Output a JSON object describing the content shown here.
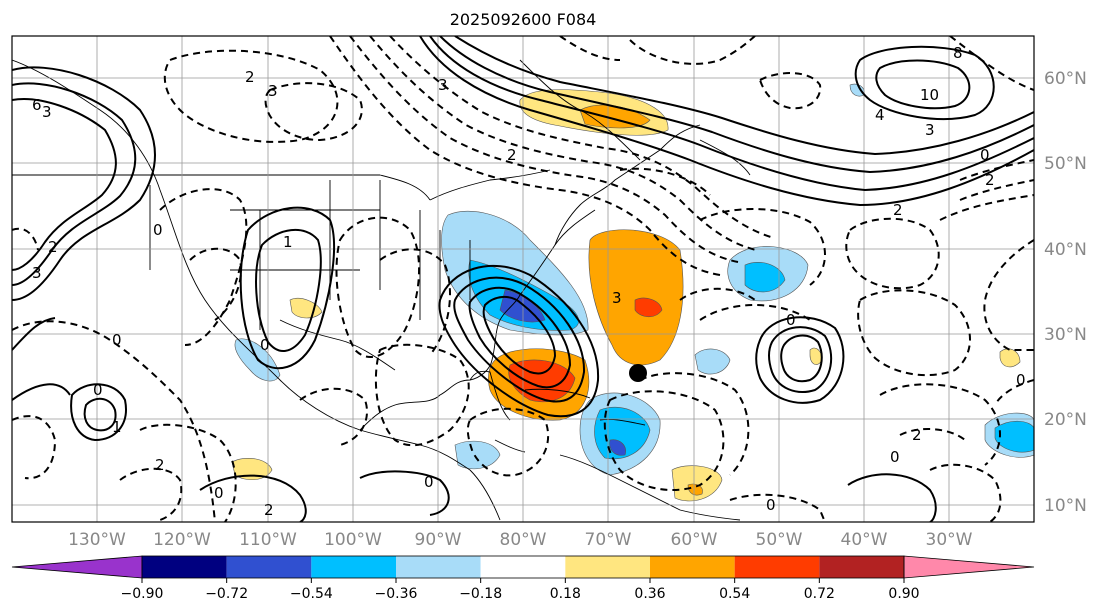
{
  "title": "2025092600 F084",
  "lon_labels": [
    "130°W",
    "120°W",
    "110°W",
    "100°W",
    "90°W",
    "80°W",
    "70°W",
    "60°W",
    "50°W",
    "40°W",
    "30°W"
  ],
  "lat_labels": [
    "60°N",
    "50°N",
    "40°N",
    "30°N",
    "20°N",
    "10°N"
  ],
  "colorbar": {
    "labels": [
      "−0.90",
      "−0.72",
      "−0.54",
      "−0.36",
      "−0.18",
      "0.18",
      "0.36",
      "0.54",
      "0.72",
      "0.90"
    ],
    "colors": [
      "#9933cc",
      "#000080",
      "#3050d0",
      "#00bfff",
      "#a8dcf8",
      "#ffffff",
      "#ffe680",
      "#ffa500",
      "#ff3c00",
      "#b22222",
      "#ff88aa"
    ]
  },
  "contour_labels": [
    "3",
    "6",
    "2",
    "3",
    "0",
    "2",
    "3",
    "1",
    "0",
    "0",
    "1",
    "0",
    "0",
    "2",
    "0",
    "3",
    "10",
    "4",
    "3",
    "0",
    "2",
    "8",
    "2",
    "3",
    "2",
    "0",
    "0",
    "2",
    "0",
    "0",
    "2"
  ],
  "marker": "storm-center"
}
